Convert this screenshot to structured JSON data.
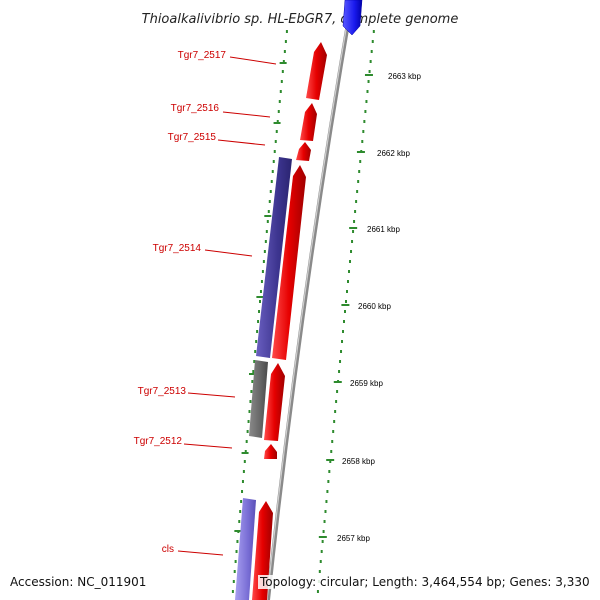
{
  "title": "Thioalkalivibrio sp. HL-EbGR7, complete genome",
  "footer": {
    "accession": "Accession: NC_011901",
    "topology": "Topology: circular; Length: 3,464,554 bp; Genes: 3,330"
  },
  "genes": [
    {
      "label": "Tgr7_2517",
      "kind": "cds",
      "strand": "forward",
      "color": "#e60000"
    },
    {
      "label": "Tgr7_2516",
      "kind": "cds",
      "strand": "forward",
      "color": "#e60000"
    },
    {
      "label": "Tgr7_2515",
      "kind": "cds",
      "strand": "forward",
      "color": "#e60000"
    },
    {
      "label": "Tgr7_2514",
      "kind": "cds",
      "strand": "forward",
      "color": "#e60000"
    },
    {
      "label": "Tgr7_2513",
      "kind": "cds",
      "strand": "forward",
      "color": "#e60000"
    },
    {
      "label": "Tgr7_2512",
      "kind": "cds",
      "strand": "forward",
      "color": "#e60000"
    },
    {
      "label": "cls",
      "kind": "cds",
      "strand": "forward",
      "color": "#e60000"
    }
  ],
  "kbp_ticks": [
    "2663 kbp",
    "2662 kbp",
    "2661 kbp",
    "2660 kbp",
    "2659 kbp",
    "2658 kbp",
    "2657 kbp"
  ],
  "colors": {
    "forward_cds": "#e60000",
    "feature_blue": "#3d3590",
    "feature_grey": "#666666",
    "feature_light_blue": "#7a6fd6",
    "rna_blue": "#1a1aee",
    "backbone": "#8a8a8a",
    "tick_green": "#2e8b2e"
  }
}
